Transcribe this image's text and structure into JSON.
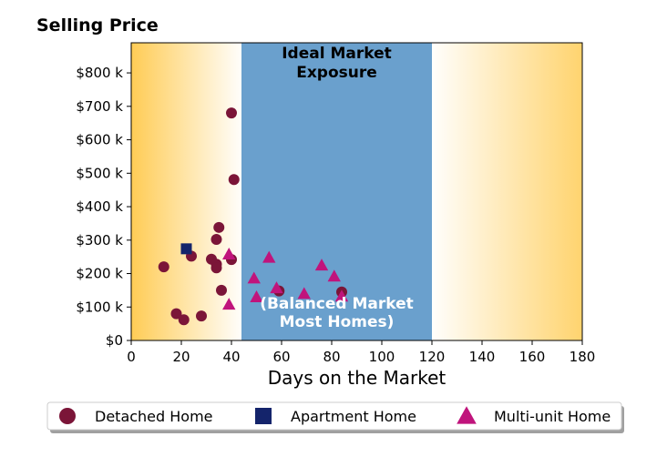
{
  "chart_data": {
    "type": "scatter",
    "title": "Selling Price",
    "xlabel": "Days on the Market",
    "ylabel": "",
    "xlim": [
      0,
      180
    ],
    "ylim": [
      0,
      890000
    ],
    "xticks": [
      0,
      20,
      40,
      60,
      80,
      100,
      120,
      140,
      160,
      180
    ],
    "xtick_labels": [
      "0",
      "20",
      "40",
      "60",
      "80",
      "100",
      "120",
      "140",
      "160",
      "180"
    ],
    "yticks": [
      0,
      100000,
      200000,
      300000,
      400000,
      500000,
      600000,
      700000,
      800000
    ],
    "ytick_labels": [
      "$0",
      "$100 k",
      "$200 k",
      "$300 k",
      "$400 k",
      "$500 k",
      "$600 k",
      "$700 k",
      "$800 k"
    ],
    "grid": false,
    "legend_position": "bottom",
    "background_gradient": {
      "color": "#ffcc55"
    },
    "ideal_band": {
      "x_start": 44,
      "x_end": 120,
      "color": "#6aa0cd"
    },
    "annotations": {
      "top": [
        "Ideal Market",
        "Exposure"
      ],
      "middle": [
        "(Balanced Market",
        "Most Homes)"
      ]
    },
    "series": [
      {
        "name": "Detached Home",
        "marker": "circle",
        "color": "#7b1538",
        "points": [
          [
            40,
            680000
          ],
          [
            41,
            481000
          ],
          [
            35,
            338000
          ],
          [
            34,
            302000
          ],
          [
            24,
            252000
          ],
          [
            32,
            243000
          ],
          [
            34,
            228000
          ],
          [
            34,
            217000
          ],
          [
            40,
            242000
          ],
          [
            13,
            220000
          ],
          [
            36,
            150000
          ],
          [
            18,
            80000
          ],
          [
            21,
            62000
          ],
          [
            28,
            73000
          ],
          [
            59,
            148000
          ],
          [
            84,
            145000
          ]
        ]
      },
      {
        "name": "Apartment Home",
        "marker": "square",
        "color": "#14246b",
        "points": [
          [
            22,
            274000
          ]
        ]
      },
      {
        "name": "Multi-unit Home",
        "marker": "triangle",
        "color": "#c0147c",
        "points": [
          [
            39,
            258000
          ],
          [
            55,
            248000
          ],
          [
            49,
            186000
          ],
          [
            58,
            157000
          ],
          [
            50,
            130000
          ],
          [
            39,
            108000
          ],
          [
            69,
            140000
          ],
          [
            76,
            225000
          ],
          [
            81,
            192000
          ],
          [
            84,
            132000
          ]
        ]
      }
    ]
  }
}
